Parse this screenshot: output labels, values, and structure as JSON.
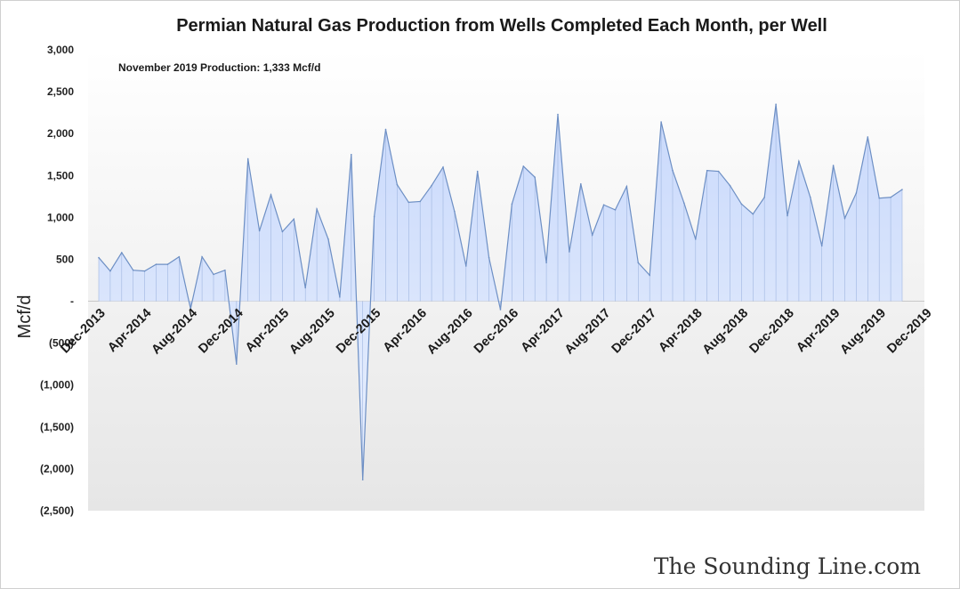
{
  "chart_data": {
    "type": "area",
    "title": "Permian Natural Gas Production from Wells Completed Each Month, per Well",
    "annotation": "November 2019 Production: 1,333 Mcf/d",
    "ylabel": "Mcf/d",
    "xlabel": "",
    "ylim": [
      -2500,
      3000
    ],
    "yticks": [
      3000,
      2500,
      2000,
      1500,
      1000,
      500,
      0,
      -500,
      -1000,
      -1500,
      -2000,
      -2500
    ],
    "ytick_labels": [
      "3,000",
      "2,500",
      "2,000",
      "1,500",
      "1,000",
      "500",
      "-",
      "(500)",
      "(1,000)",
      "(1,500)",
      "(2,000)",
      "(2,500)"
    ],
    "x_tick_labels": [
      "Dec-2013",
      "Apr-2014",
      "Aug-2014",
      "Dec-2014",
      "Apr-2015",
      "Aug-2015",
      "Dec-2015",
      "Apr-2016",
      "Aug-2016",
      "Dec-2016",
      "Apr-2017",
      "Aug-2017",
      "Dec-2017",
      "Apr-2018",
      "Aug-2018",
      "Dec-2018",
      "Apr-2019",
      "Aug-2019",
      "Dec-2019"
    ],
    "x_tick_every": 4,
    "x_start": "Dec-2013",
    "x_end": "Nov-2019",
    "legend": "none",
    "grid": false,
    "colors": {
      "fill_top": "#c9d9fb",
      "fill_bottom": "#e9f0fe",
      "line": "#6d8fc4",
      "drop_line": "#9fb6e0",
      "zero_line": "#c8c8c8"
    },
    "series": [
      {
        "values": [
          520,
          360,
          580,
          370,
          360,
          440,
          440,
          530,
          -90,
          530,
          320,
          370,
          -750,
          1700,
          840,
          1270,
          830,
          980,
          160,
          1100,
          740,
          50,
          1750,
          -2130,
          1010,
          2050,
          1390,
          1180,
          1190,
          1380,
          1600,
          1070,
          420,
          1550,
          520,
          -100,
          1160,
          1610,
          1480,
          460,
          2230,
          590,
          1400,
          790,
          1150,
          1090,
          1370,
          460,
          310,
          2140,
          1560,
          1170,
          740,
          1560,
          1550,
          1380,
          1160,
          1040,
          1240,
          2350,
          1020,
          1670,
          1240,
          660,
          1620,
          990,
          1290,
          1960,
          1230,
          1240,
          1333
        ]
      }
    ]
  },
  "watermark": "The Sounding Line.com"
}
